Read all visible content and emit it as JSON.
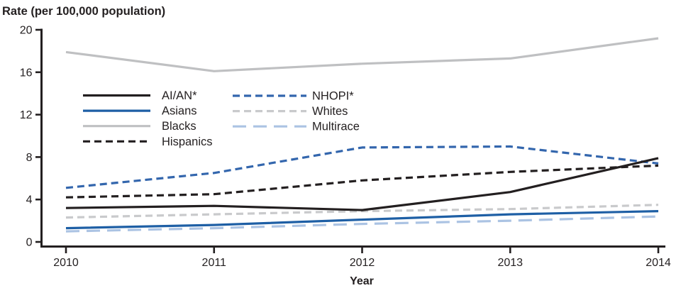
{
  "chart_data": {
    "type": "line",
    "title": "Rate (per 100,000 population)",
    "xlabel": "Year",
    "ylabel": "Rate (per 100,000 population)",
    "x": [
      2010,
      2011,
      2012,
      2013,
      2014
    ],
    "x_tick_labels": [
      "2010",
      "2011",
      "2012",
      "2013",
      "2014"
    ],
    "ylim": [
      0,
      20
    ],
    "yticks": [
      0,
      4,
      8,
      12,
      16,
      20
    ],
    "grid": false,
    "legend_position": "upper-left-inside",
    "series": [
      {
        "name": "AI/AN*",
        "values": [
          3.2,
          3.4,
          3.0,
          4.7,
          7.9
        ],
        "color": "#231f20",
        "dash": "solid",
        "legend_col": 0,
        "legend_row": 0
      },
      {
        "name": "Asians",
        "values": [
          1.3,
          1.6,
          2.1,
          2.6,
          2.9
        ],
        "color": "#1e5fa5",
        "dash": "solid",
        "legend_col": 0,
        "legend_row": 1
      },
      {
        "name": "Blacks",
        "values": [
          17.9,
          16.1,
          16.8,
          17.3,
          19.2
        ],
        "color": "#bfc0c2",
        "dash": "solid",
        "legend_col": 0,
        "legend_row": 2
      },
      {
        "name": "Hispanics",
        "values": [
          4.2,
          4.5,
          5.8,
          6.6,
          7.2
        ],
        "color": "#231f20",
        "dash": "short",
        "legend_col": 0,
        "legend_row": 3
      },
      {
        "name": "NHOPI*",
        "values": [
          5.1,
          6.5,
          8.9,
          9.0,
          7.4
        ],
        "color": "#3366ad",
        "dash": "short",
        "legend_col": 1,
        "legend_row": 0
      },
      {
        "name": "Whites",
        "values": [
          2.3,
          2.6,
          2.9,
          3.1,
          3.5
        ],
        "color": "#c9cacc",
        "dash": "short",
        "legend_col": 1,
        "legend_row": 1
      },
      {
        "name": "Multirace",
        "values": [
          1.0,
          1.3,
          1.7,
          2.0,
          2.4
        ],
        "color": "#abc3e3",
        "dash": "long",
        "legend_col": 1,
        "legend_row": 2
      }
    ],
    "draw_order": [
      "Blacks",
      "NHOPI*",
      "Whites",
      "Multirace",
      "Hispanics",
      "Asians",
      "AI/AN*"
    ],
    "axis_color": "#231f20",
    "text_color": "#231f20"
  }
}
